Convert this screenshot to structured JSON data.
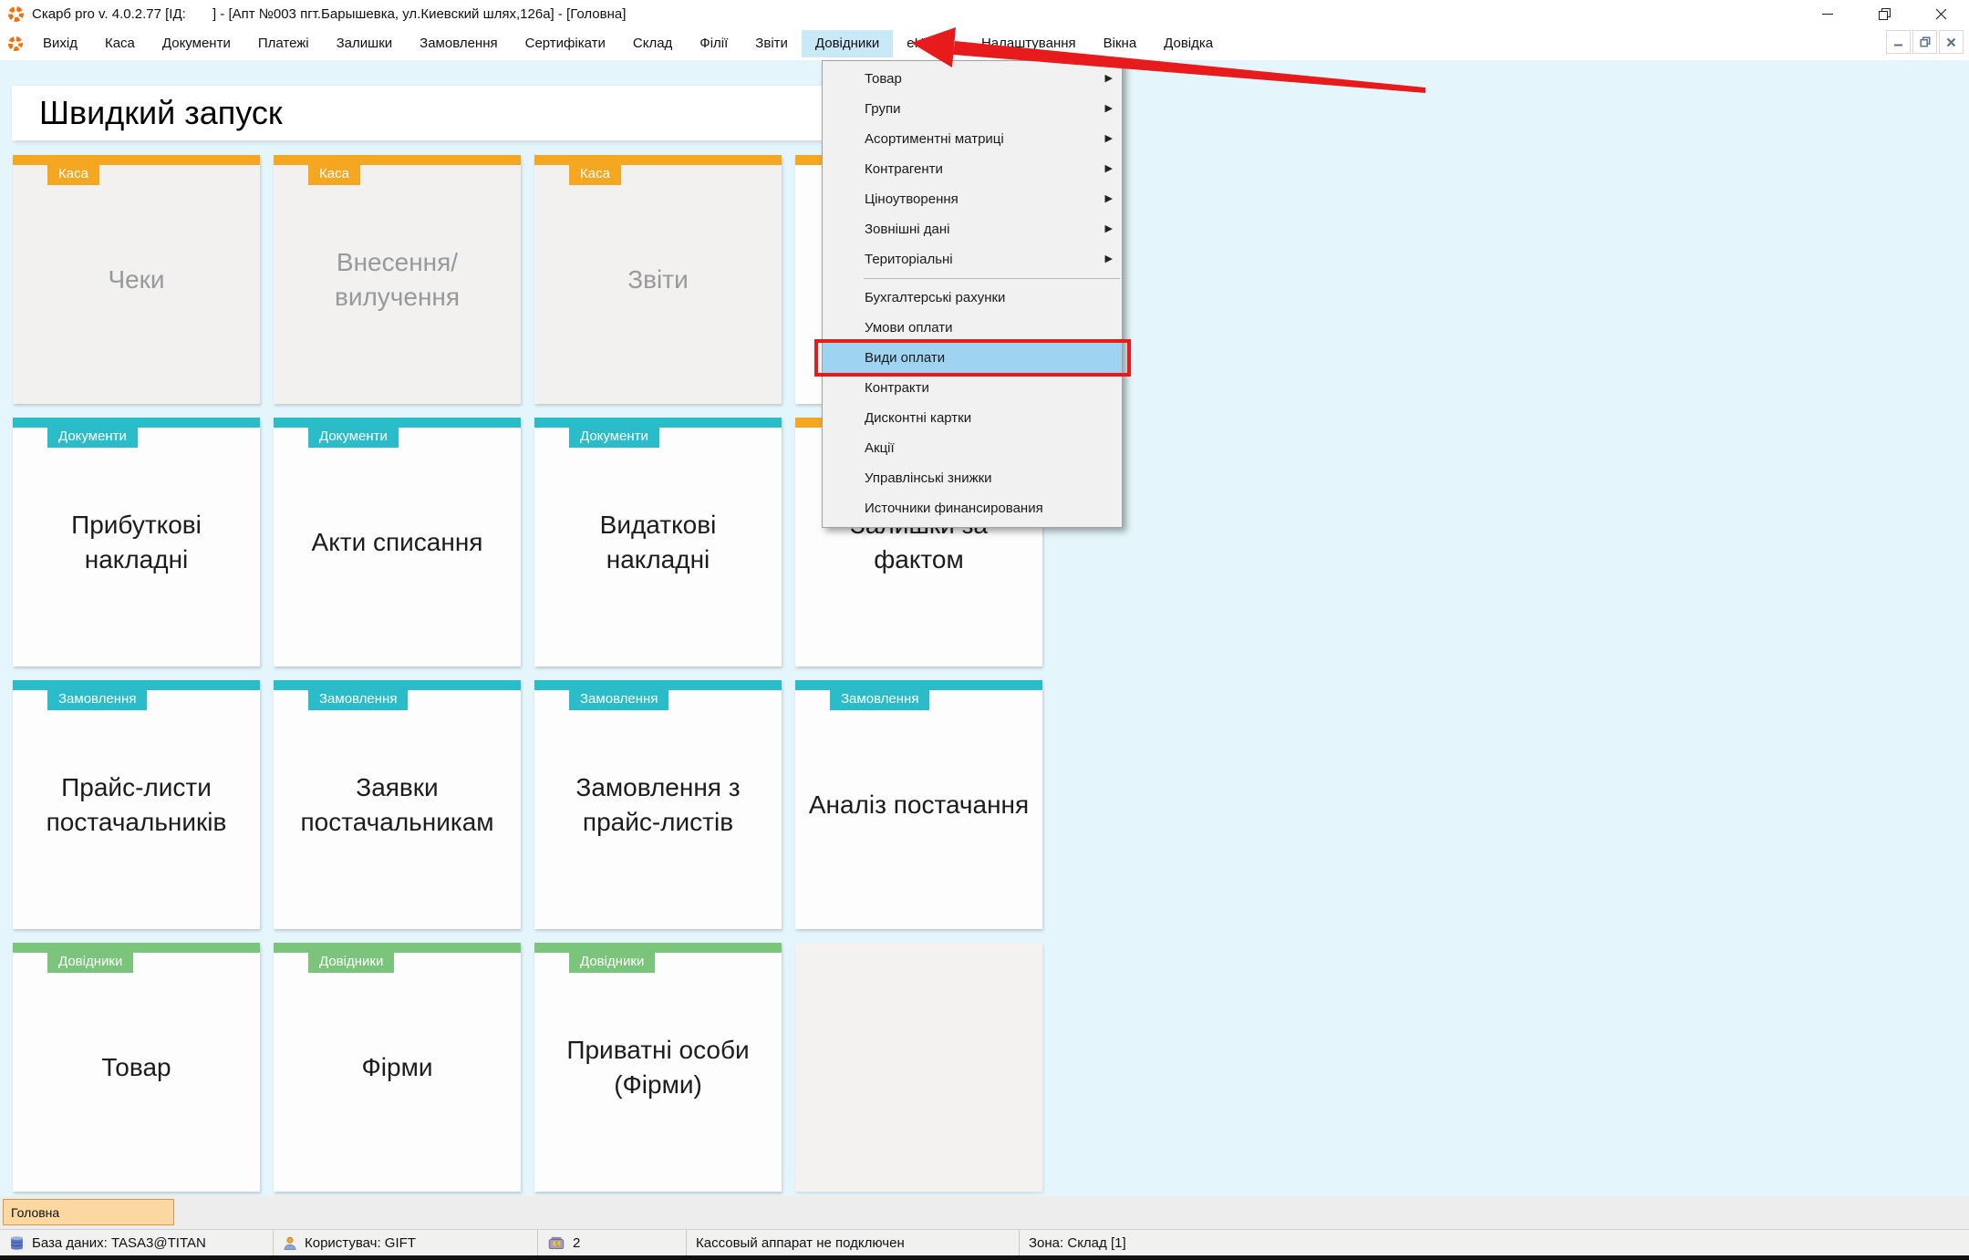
{
  "window": {
    "title": "Скарб pro v. 4.0.2.77 [ІД:       ] - [Апт №003 пгт.Барышевка, ул.Киевский шлях,126а] - [Головна]",
    "controls": [
      "minimize",
      "restore",
      "close"
    ],
    "mdi_controls": [
      "minimize",
      "restore",
      "close"
    ]
  },
  "menu_bar": {
    "items": [
      {
        "id": "vyhid",
        "label": "Вихід"
      },
      {
        "id": "kasa",
        "label": "Каса"
      },
      {
        "id": "dokumenty",
        "label": "Документи"
      },
      {
        "id": "platezhi",
        "label": "Платежі"
      },
      {
        "id": "zalyshky",
        "label": "Залишки"
      },
      {
        "id": "zamovlennia",
        "label": "Замовлення"
      },
      {
        "id": "sertyfikaty",
        "label": "Сертифікати"
      },
      {
        "id": "sklad",
        "label": "Склад"
      },
      {
        "id": "filii",
        "label": "Філії"
      },
      {
        "id": "zvity",
        "label": "Звіти"
      },
      {
        "id": "dovidnyky",
        "label": "Довідники",
        "highlighted": true
      },
      {
        "id": "ehealth",
        "label": "eHealth"
      },
      {
        "id": "nalashtuvannia",
        "label": "Налаштування"
      },
      {
        "id": "vikna",
        "label": "Вікна"
      },
      {
        "id": "dovidka",
        "label": "Довідка"
      }
    ]
  },
  "dropdown": {
    "items": [
      {
        "id": "tovar",
        "label": "Товар",
        "submenu": true
      },
      {
        "id": "hrupy",
        "label": "Групи",
        "submenu": true
      },
      {
        "id": "asortymentni-matrytsi",
        "label": "Асортиментні матриці",
        "submenu": true
      },
      {
        "id": "kontrahenty",
        "label": "Контрагенти",
        "submenu": true
      },
      {
        "id": "tsinoutvorennia",
        "label": "Ціноутворення",
        "submenu": true
      },
      {
        "id": "zovnishni-dani",
        "label": "Зовнішні дані",
        "submenu": true
      },
      {
        "id": "terytorialni",
        "label": "Територіальні",
        "submenu": true
      },
      {
        "type": "separator"
      },
      {
        "id": "buhgalterski-rahunky",
        "label": "Бухгалтерські рахунки"
      },
      {
        "id": "umovy-oplaty",
        "label": "Умови оплати"
      },
      {
        "id": "vydy-oplaty",
        "label": "Види оплати",
        "highlighted": true,
        "red_box": true
      },
      {
        "id": "kontrakty",
        "label": "Контракти"
      },
      {
        "id": "dyskontni-kartky",
        "label": "Дисконтні картки"
      },
      {
        "id": "aktsii",
        "label": "Акції"
      },
      {
        "id": "upravlinski-znyzhky",
        "label": "Управлінські знижки"
      },
      {
        "id": "istochniki-finansirovaniya",
        "label": "Источники финансирования"
      }
    ]
  },
  "quick_launch": {
    "title": "Швидкий запуск",
    "tiles": [
      {
        "row": 0,
        "col": 0,
        "category": "Каса",
        "color": "orange",
        "label": "Чеки",
        "variant": "disabled"
      },
      {
        "row": 0,
        "col": 1,
        "category": "Каса",
        "color": "orange",
        "label": "Внесення/вилучення",
        "variant": "disabled"
      },
      {
        "row": 0,
        "col": 2,
        "category": "Каса",
        "color": "orange",
        "label": "Звіти",
        "variant": "disabled"
      },
      {
        "row": 0,
        "col": 3,
        "category": "",
        "color": "orange",
        "label": "",
        "variant": "normal"
      },
      {
        "row": 1,
        "col": 0,
        "category": "Документи",
        "color": "teal",
        "label": "Прибуткові накладні",
        "variant": "normal"
      },
      {
        "row": 1,
        "col": 1,
        "category": "Документи",
        "color": "teal",
        "label": "Акти списання",
        "variant": "normal"
      },
      {
        "row": 1,
        "col": 2,
        "category": "Документи",
        "color": "teal",
        "label": "Видаткові накладні",
        "variant": "normal"
      },
      {
        "row": 1,
        "col": 3,
        "category": "",
        "color": "orange",
        "label": "Залишки за фактом",
        "variant": "normal"
      },
      {
        "row": 2,
        "col": 0,
        "category": "Замовлення",
        "color": "teal",
        "label": "Прайс-листи постачальників",
        "variant": "normal"
      },
      {
        "row": 2,
        "col": 1,
        "category": "Замовлення",
        "color": "teal",
        "label": "Заявки постачальникам",
        "variant": "normal"
      },
      {
        "row": 2,
        "col": 2,
        "category": "Замовлення",
        "color": "teal",
        "label": "Замовлення з прайс-листів",
        "variant": "normal"
      },
      {
        "row": 2,
        "col": 3,
        "category": "Замовлення",
        "color": "teal",
        "label": "Аналіз постачання",
        "variant": "normal"
      },
      {
        "row": 3,
        "col": 0,
        "category": "Довідники",
        "color": "green",
        "label": "Товар",
        "variant": "normal"
      },
      {
        "row": 3,
        "col": 1,
        "category": "Довідники",
        "color": "green",
        "label": "Фірми",
        "variant": "normal"
      },
      {
        "row": 3,
        "col": 2,
        "category": "Довідники",
        "color": "green",
        "label": "Приватні особи (Фірми)",
        "variant": "normal"
      },
      {
        "row": 3,
        "col": 3,
        "category": "",
        "color": "",
        "label": "",
        "variant": "empty"
      }
    ]
  },
  "tab_bar": {
    "active_tab": "Головна"
  },
  "status_bar": {
    "sections": [
      {
        "icon": "database-icon",
        "text": "База даних: TASA3@TITAN"
      },
      {
        "icon": "user-icon",
        "text": "Користувач: GIFT"
      },
      {
        "icon": "cash-register-icon",
        "text": "2"
      },
      {
        "text": "Кассовый аппарат не подключен"
      },
      {
        "text": "Зона: Склад [1]"
      }
    ]
  },
  "colors": {
    "orange": "#f6a722",
    "teal": "#2bbcca",
    "green": "#7bc47b",
    "menu_highlight": "#9fd3f2",
    "menubar_highlight": "#c9e8f8",
    "annotation_red": "#e71b1b",
    "background": "#e4f6fb"
  }
}
